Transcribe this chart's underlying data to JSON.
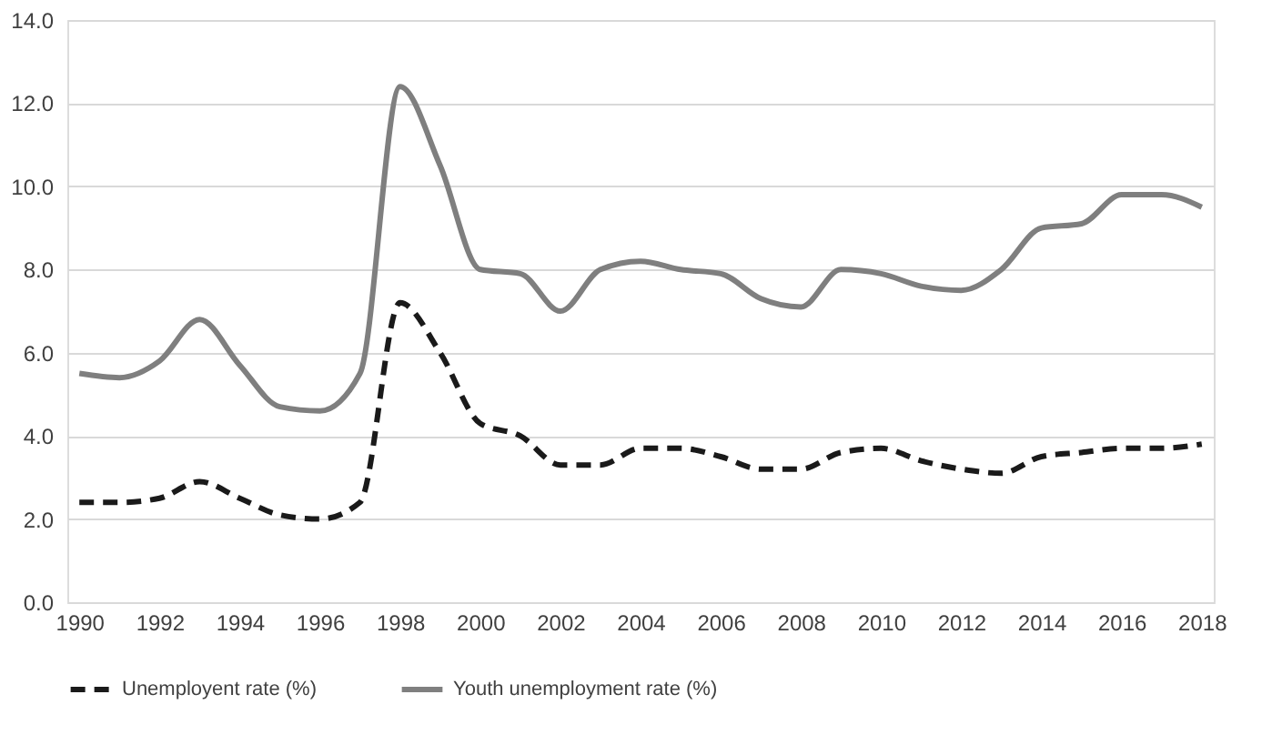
{
  "chart_data": {
    "type": "line",
    "categories": [
      "1990",
      null,
      "1992",
      null,
      "1994",
      null,
      "1996",
      null,
      "1998",
      null,
      "2000",
      null,
      "2002",
      null,
      "2004",
      null,
      "2006",
      null,
      "2008",
      null,
      "2010",
      null,
      "2012",
      null,
      "2014",
      null,
      "2016",
      null,
      "2018"
    ],
    "series": [
      {
        "name": "Unemployent rate (%)",
        "color": "#1a1a1a",
        "line_style": "dashed",
        "values": [
          2.4,
          2.4,
          2.5,
          2.9,
          2.5,
          2.1,
          2.0,
          2.4,
          7.2,
          6.0,
          4.3,
          4.0,
          3.3,
          3.3,
          3.7,
          3.7,
          3.5,
          3.2,
          3.2,
          3.6,
          3.7,
          3.4,
          3.2,
          3.1,
          3.5,
          3.6,
          3.7,
          3.7,
          3.8
        ]
      },
      {
        "name": "Youth unemployment rate (%)",
        "color": "#7f7f7f",
        "line_style": "solid",
        "values": [
          5.5,
          5.4,
          5.8,
          6.8,
          5.7,
          4.7,
          4.6,
          5.5,
          12.4,
          10.5,
          8.0,
          7.9,
          7.0,
          8.0,
          8.2,
          8.0,
          7.9,
          7.3,
          7.1,
          8.0,
          7.9,
          7.6,
          7.5,
          8.0,
          9.0,
          9.1,
          9.8,
          9.8,
          9.5
        ]
      }
    ],
    "ylim": [
      0,
      14
    ],
    "yticks": [
      {
        "value": 0,
        "label": "0.0"
      },
      {
        "value": 2,
        "label": "2.0"
      },
      {
        "value": 4,
        "label": "4.0"
      },
      {
        "value": 6,
        "label": "6.0"
      },
      {
        "value": 8,
        "label": "8.0"
      },
      {
        "value": 10,
        "label": "10.0"
      },
      {
        "value": 12,
        "label": "12.0"
      },
      {
        "value": 14,
        "label": "14.0"
      }
    ],
    "grid": "y",
    "legend": "bottom",
    "marker": "none"
  }
}
